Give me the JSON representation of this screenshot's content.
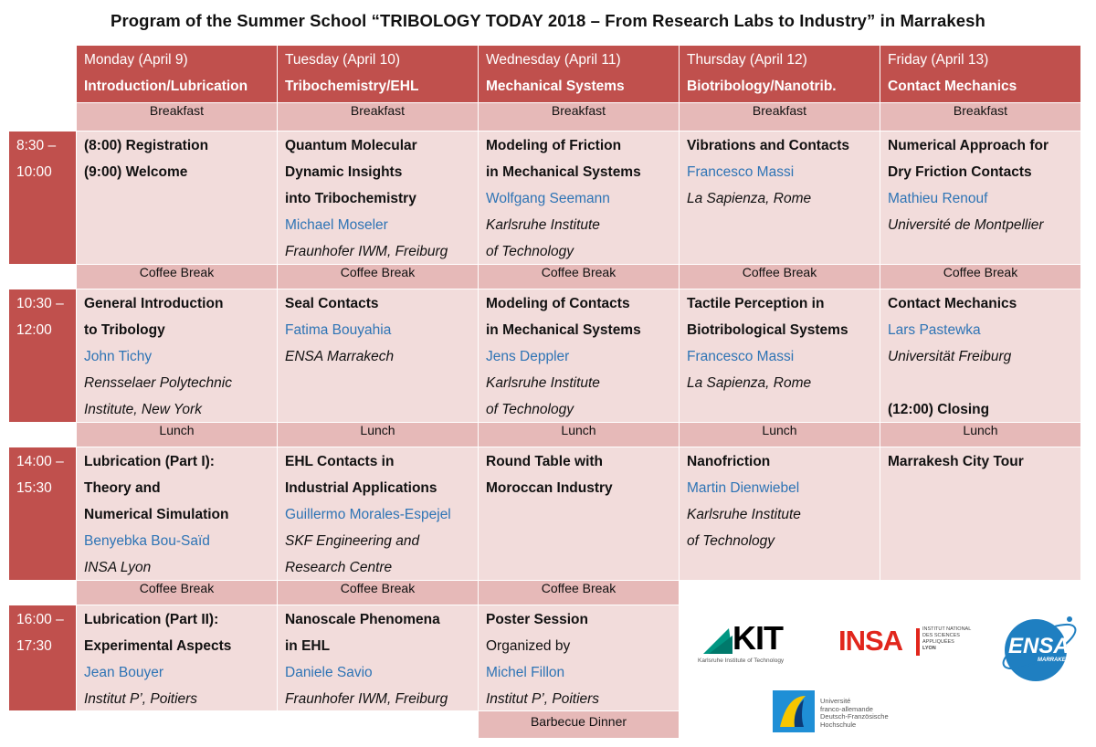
{
  "title": "Program of the Summer School “TRIBOLOGY TODAY 2018 – From Research Labs to Industry” in Marrakesh",
  "days": [
    {
      "date": "Monday (April 9)",
      "topic": "Introduction/Lubrication"
    },
    {
      "date": "Tuesday (April 10)",
      "topic": "Tribochemistry/EHL"
    },
    {
      "date": "Wednesday (April 11)",
      "topic": "Mechanical Systems"
    },
    {
      "date": "Thursday (April 12)",
      "topic": "Biotribology/Nanotrib."
    },
    {
      "date": "Friday (April 13)",
      "topic": "Contact Mechanics"
    }
  ],
  "breaks": {
    "breakfast": "Breakfast",
    "coffee": "Coffee Break",
    "lunch": "Lunch",
    "dinner": "Barbecue Dinner"
  },
  "slots": [
    {
      "start": "8:30 –",
      "end": "10:00"
    },
    {
      "start": "10:30 –",
      "end": "12:00"
    },
    {
      "start": "14:00 –",
      "end": "15:30"
    },
    {
      "start": "16:00 –",
      "end": "17:30"
    }
  ],
  "s1": {
    "mon": {
      "l1": "(8:00) Registration",
      "l2": "(9:00) Welcome"
    },
    "tue": {
      "t1": "Quantum Molecular",
      "t2": "Dynamic Insights",
      "t3": "into Tribochemistry",
      "speaker": "Michael Moseler",
      "aff1": "Fraunhofer IWM, Freiburg"
    },
    "wed": {
      "t1": "Modeling of Friction",
      "t2": "in Mechanical Systems",
      "speaker": "Wolfgang Seemann",
      "aff1": "Karlsruhe Institute",
      "aff2": "of Technology"
    },
    "thu": {
      "t1": "Vibrations and Contacts",
      "speaker": "Francesco Massi",
      "aff1": "La Sapienza, Rome"
    },
    "fri": {
      "t1": "Numerical Approach for",
      "t2": "Dry Friction Contacts",
      "speaker": "Mathieu Renouf",
      "aff1": "Université de Montpellier"
    }
  },
  "s2": {
    "mon": {
      "t1": "General Introduction",
      "t2": "to Tribology",
      "speaker": "John Tichy",
      "aff1": "Rensselaer Polytechnic",
      "aff2": "Institute, New York"
    },
    "tue": {
      "t1": "Seal Contacts",
      "speaker": "Fatima Bouyahia",
      "aff1": "ENSA Marrakech"
    },
    "wed": {
      "t1": "Modeling of Contacts",
      "t2": "in Mechanical Systems",
      "speaker": "Jens Deppler",
      "aff1": "Karlsruhe Institute",
      "aff2": "of Technology"
    },
    "thu": {
      "t1": "Tactile Perception in",
      "t2": "Biotribological Systems",
      "speaker": "Francesco Massi",
      "aff1": "La Sapienza, Rome"
    },
    "fri": {
      "t1": "Contact Mechanics",
      "speaker": "Lars Pastewka",
      "aff1": "Universität Freiburg",
      "closing": "(12:00) Closing"
    }
  },
  "s3": {
    "mon": {
      "t1": "Lubrication (Part I):",
      "t2": "Theory and",
      "t3": "Numerical Simulation",
      "speaker": "Benyebka Bou-Saïd",
      "aff1": "INSA Lyon"
    },
    "tue": {
      "t1": "EHL Contacts in",
      "t2": "Industrial Applications",
      "speaker": "Guillermo Morales-Espejel",
      "aff1": "SKF Engineering and",
      "aff2": "Research Centre"
    },
    "wed": {
      "t1": "Round Table with",
      "t2": "Moroccan Industry"
    },
    "thu": {
      "t1": "Nanofriction",
      "speaker": "Martin Dienwiebel",
      "aff1": "Karlsruhe Institute",
      "aff2": "of Technology"
    },
    "fri": {
      "t1": "Marrakesh City Tour"
    }
  },
  "s4": {
    "mon": {
      "t1": "Lubrication (Part II):",
      "t2": "Experimental Aspects",
      "speaker": "Jean Bouyer",
      "aff1": "Institut P’, Poitiers"
    },
    "tue": {
      "t1": "Nanoscale Phenomena",
      "t2": "in EHL",
      "speaker": "Daniele Savio",
      "aff1": "Fraunhofer IWM, Freiburg"
    },
    "wed": {
      "t1": "Poster Session",
      "t2": "Organized by",
      "speaker": "Michel Fillon",
      "aff1": "Institut P’, Poitiers"
    }
  },
  "logos": {
    "kit": {
      "mark": "KIT",
      "sub": "Karlsruhe Institute of Technology"
    },
    "insa": {
      "mark": "INSA",
      "l1": "INSTITUT NATIONAL",
      "l2": "DES SCIENCES",
      "l3": "APPLIQUÉES",
      "l4": "LYON"
    },
    "ensa": {
      "mark": "ENSA",
      "sub": "MARRAKECH"
    },
    "dfh": {
      "l1": "Université",
      "l2": "franco-allemande",
      "l3": "Deutsch-Französische",
      "l4": "Hochschule"
    }
  },
  "colors": {
    "header": "#c0504d",
    "break": "#e6b9b8",
    "session": "#f2dcdb",
    "speaker": "#2e74b5"
  }
}
